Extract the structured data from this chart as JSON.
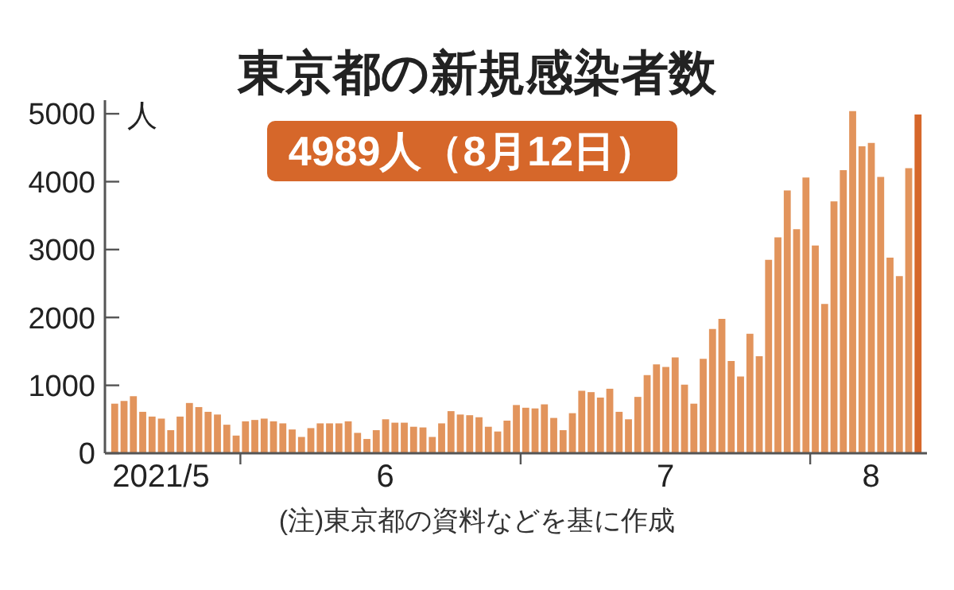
{
  "chart_data": {
    "type": "bar",
    "title": "東京都の新規感染者数",
    "annotations": [
      "4989人（8月12日）",
      "(注)東京都の資料などを基に作成"
    ],
    "ylabel": "人",
    "x": [
      "2021-05-18",
      "2021-05-19",
      "2021-05-20",
      "2021-05-21",
      "2021-05-22",
      "2021-05-23",
      "2021-05-24",
      "2021-05-25",
      "2021-05-26",
      "2021-05-27",
      "2021-05-28",
      "2021-05-29",
      "2021-05-30",
      "2021-05-31",
      "2021-06-01",
      "2021-06-02",
      "2021-06-03",
      "2021-06-04",
      "2021-06-05",
      "2021-06-06",
      "2021-06-07",
      "2021-06-08",
      "2021-06-09",
      "2021-06-10",
      "2021-06-11",
      "2021-06-12",
      "2021-06-13",
      "2021-06-14",
      "2021-06-15",
      "2021-06-16",
      "2021-06-17",
      "2021-06-18",
      "2021-06-19",
      "2021-06-20",
      "2021-06-21",
      "2021-06-22",
      "2021-06-23",
      "2021-06-24",
      "2021-06-25",
      "2021-06-26",
      "2021-06-27",
      "2021-06-28",
      "2021-06-29",
      "2021-06-30",
      "2021-07-01",
      "2021-07-02",
      "2021-07-03",
      "2021-07-04",
      "2021-07-05",
      "2021-07-06",
      "2021-07-07",
      "2021-07-08",
      "2021-07-09",
      "2021-07-10",
      "2021-07-11",
      "2021-07-12",
      "2021-07-13",
      "2021-07-14",
      "2021-07-15",
      "2021-07-16",
      "2021-07-17",
      "2021-07-18",
      "2021-07-19",
      "2021-07-20",
      "2021-07-21",
      "2021-07-22",
      "2021-07-23",
      "2021-07-24",
      "2021-07-25",
      "2021-07-26",
      "2021-07-27",
      "2021-07-28",
      "2021-07-29",
      "2021-07-30",
      "2021-07-31",
      "2021-08-01",
      "2021-08-02",
      "2021-08-03",
      "2021-08-04",
      "2021-08-05",
      "2021-08-06",
      "2021-08-07",
      "2021-08-08",
      "2021-08-09",
      "2021-08-10",
      "2021-08-11",
      "2021-08-12"
    ],
    "values": [
      730,
      770,
      840,
      610,
      540,
      510,
      340,
      540,
      740,
      680,
      610,
      570,
      420,
      260,
      470,
      490,
      510,
      470,
      440,
      350,
      240,
      370,
      440,
      440,
      440,
      470,
      300,
      210,
      340,
      500,
      450,
      450,
      390,
      380,
      240,
      440,
      620,
      570,
      560,
      530,
      390,
      320,
      480,
      710,
      670,
      660,
      720,
      520,
      340,
      590,
      920,
      900,
      820,
      950,
      610,
      500,
      830,
      1150,
      1310,
      1270,
      1410,
      1010,
      730,
      1390,
      1830,
      1980,
      1360,
      1130,
      1760,
      1430,
      2850,
      3180,
      3870,
      3300,
      4060,
      3060,
      2200,
      3710,
      4170,
      5040,
      4520,
      4570,
      4070,
      2880,
      2610,
      4200,
      4989
    ],
    "colors": [
      "#e2945c",
      "#e2945c",
      "#e2945c",
      "#e2945c",
      "#e2945c",
      "#e2945c",
      "#e2945c",
      "#e2945c",
      "#e2945c",
      "#e2945c",
      "#e2945c",
      "#e2945c",
      "#e2945c",
      "#e2945c",
      "#e2945c",
      "#e2945c",
      "#e2945c",
      "#e2945c",
      "#e2945c",
      "#e2945c",
      "#e2945c",
      "#e2945c",
      "#e2945c",
      "#e2945c",
      "#e2945c",
      "#e2945c",
      "#e2945c",
      "#e2945c",
      "#e2945c",
      "#e2945c",
      "#e2945c",
      "#e2945c",
      "#e2945c",
      "#e2945c",
      "#e2945c",
      "#e2945c",
      "#e2945c",
      "#e2945c",
      "#e2945c",
      "#e2945c",
      "#e2945c",
      "#e2945c",
      "#e2945c",
      "#e2945c",
      "#e2945c",
      "#e2945c",
      "#e2945c",
      "#e2945c",
      "#e2945c",
      "#e2945c",
      "#e2945c",
      "#e2945c",
      "#e2945c",
      "#e2945c",
      "#e2945c",
      "#e2945c",
      "#e2945c",
      "#e2945c",
      "#e2945c",
      "#e2945c",
      "#e2945c",
      "#e2945c",
      "#e2945c",
      "#e2945c",
      "#e2945c",
      "#e2945c",
      "#e2945c",
      "#e2945c",
      "#e2945c",
      "#e2945c",
      "#e2945c",
      "#e2945c",
      "#e2945c",
      "#e2945c",
      "#e2945c",
      "#e2945c",
      "#e2945c",
      "#e2945c",
      "#e2945c",
      "#e2945c",
      "#e2945c",
      "#e2945c",
      "#e2945c",
      "#e2945c",
      "#e2945c",
      "#e2945c",
      "#d6672a"
    ],
    "xlim": [
      "2021-05-17",
      "2021-08-13"
    ],
    "xticks": [
      {
        "value": "2021-05-23",
        "label": "2021/5"
      },
      {
        "value": "2021-05-31T12:00",
        "label": null
      },
      {
        "value": "2021-06-16",
        "label": "6"
      },
      {
        "value": "2021-06-30T12:00",
        "label": null
      },
      {
        "value": "2021-07-16",
        "label": "7"
      },
      {
        "value": "2021-07-31T12:00",
        "label": null
      },
      {
        "value": "2021-08-07",
        "label": "8"
      }
    ],
    "ylim": [
      0,
      5200
    ],
    "yticks": [
      0,
      1000,
      2000,
      3000,
      4000,
      5000
    ]
  }
}
